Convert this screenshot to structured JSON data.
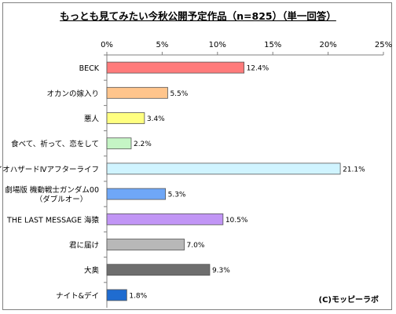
{
  "chart_data": {
    "type": "bar",
    "orientation": "horizontal",
    "title": "もっとも見てみたい今秋公開予定作品（n=825）（単一回答）",
    "categories": [
      [
        "BECK"
      ],
      [
        "オカンの嫁入り"
      ],
      [
        "悪人"
      ],
      [
        "食べて、祈って、恋をして"
      ],
      [
        "バイオハザードⅣアフターライフ"
      ],
      [
        "劇場版 機動戦士ガンダム00",
        "（ダブルオー）"
      ],
      [
        "THE LAST MESSAGE 海猿"
      ],
      [
        "君に届け"
      ],
      [
        "大奥"
      ],
      [
        "ナイト&デイ"
      ]
    ],
    "values": [
      12.4,
      5.5,
      3.4,
      2.2,
      21.1,
      5.3,
      10.5,
      7.0,
      9.3,
      1.8
    ],
    "value_labels": [
      "12.4%",
      "5.5%",
      "3.4%",
      "2.2%",
      "21.1%",
      "5.3%",
      "10.5%",
      "7.0%",
      "9.3%",
      "1.8%"
    ],
    "colors": [
      "#ff7b7b",
      "#ffc58c",
      "#ffff80",
      "#c5f5c5",
      "#d0f4ff",
      "#6fa7f7",
      "#c195f5",
      "#b8b8b8",
      "#6e6e6e",
      "#1f6cd0"
    ],
    "xlim": [
      0,
      25
    ],
    "xticks": [
      0,
      5,
      10,
      15,
      20,
      25
    ],
    "xtick_labels": [
      "0%",
      "5%",
      "10%",
      "15%",
      "20%",
      "25%"
    ],
    "grid": false,
    "axis_position": "top"
  },
  "copyright": "(C)モッピーラボ"
}
